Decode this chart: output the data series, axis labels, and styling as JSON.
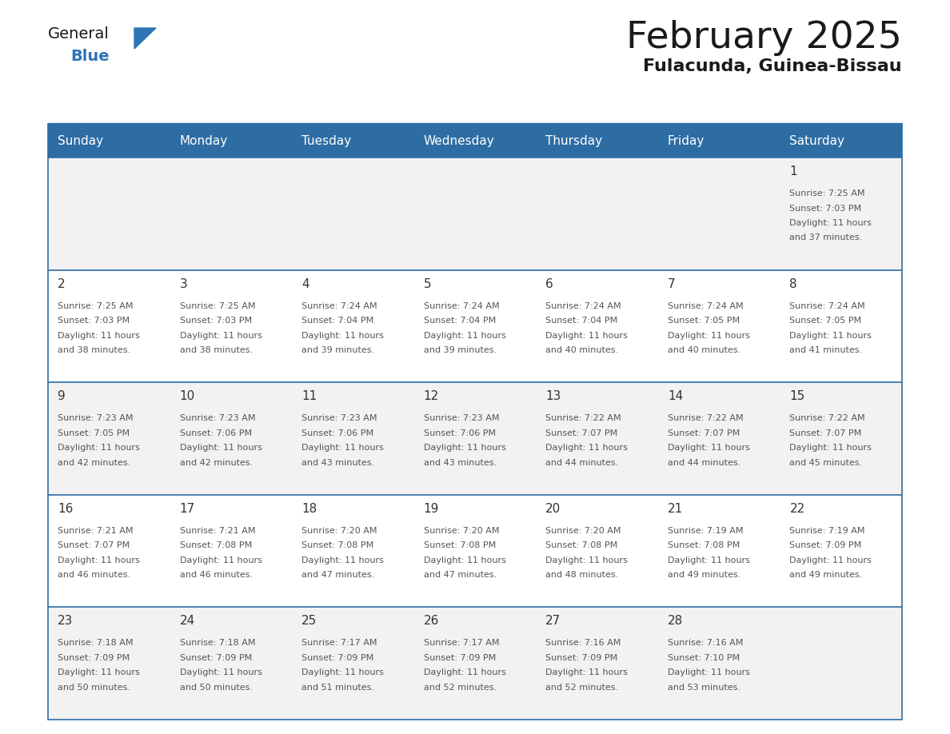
{
  "title": "February 2025",
  "subtitle": "Fulacunda, Guinea-Bissau",
  "header_color": "#2E6DA4",
  "header_text_color": "#FFFFFF",
  "cell_bg_even": "#F2F2F2",
  "cell_bg_odd": "#FFFFFF",
  "border_color": "#2E6DA4",
  "day_names": [
    "Sunday",
    "Monday",
    "Tuesday",
    "Wednesday",
    "Thursday",
    "Friday",
    "Saturday"
  ],
  "text_color": "#555555",
  "day_num_color": "#333333",
  "logo_general_color": "#1a1a1a",
  "logo_blue_color": "#2E75B6",
  "days": [
    {
      "day": 1,
      "col": 6,
      "row": 0,
      "sunrise": "7:25 AM",
      "sunset": "7:03 PM",
      "daylight_hrs": 11,
      "daylight_min": 37
    },
    {
      "day": 2,
      "col": 0,
      "row": 1,
      "sunrise": "7:25 AM",
      "sunset": "7:03 PM",
      "daylight_hrs": 11,
      "daylight_min": 38
    },
    {
      "day": 3,
      "col": 1,
      "row": 1,
      "sunrise": "7:25 AM",
      "sunset": "7:03 PM",
      "daylight_hrs": 11,
      "daylight_min": 38
    },
    {
      "day": 4,
      "col": 2,
      "row": 1,
      "sunrise": "7:24 AM",
      "sunset": "7:04 PM",
      "daylight_hrs": 11,
      "daylight_min": 39
    },
    {
      "day": 5,
      "col": 3,
      "row": 1,
      "sunrise": "7:24 AM",
      "sunset": "7:04 PM",
      "daylight_hrs": 11,
      "daylight_min": 39
    },
    {
      "day": 6,
      "col": 4,
      "row": 1,
      "sunrise": "7:24 AM",
      "sunset": "7:04 PM",
      "daylight_hrs": 11,
      "daylight_min": 40
    },
    {
      "day": 7,
      "col": 5,
      "row": 1,
      "sunrise": "7:24 AM",
      "sunset": "7:05 PM",
      "daylight_hrs": 11,
      "daylight_min": 40
    },
    {
      "day": 8,
      "col": 6,
      "row": 1,
      "sunrise": "7:24 AM",
      "sunset": "7:05 PM",
      "daylight_hrs": 11,
      "daylight_min": 41
    },
    {
      "day": 9,
      "col": 0,
      "row": 2,
      "sunrise": "7:23 AM",
      "sunset": "7:05 PM",
      "daylight_hrs": 11,
      "daylight_min": 42
    },
    {
      "day": 10,
      "col": 1,
      "row": 2,
      "sunrise": "7:23 AM",
      "sunset": "7:06 PM",
      "daylight_hrs": 11,
      "daylight_min": 42
    },
    {
      "day": 11,
      "col": 2,
      "row": 2,
      "sunrise": "7:23 AM",
      "sunset": "7:06 PM",
      "daylight_hrs": 11,
      "daylight_min": 43
    },
    {
      "day": 12,
      "col": 3,
      "row": 2,
      "sunrise": "7:23 AM",
      "sunset": "7:06 PM",
      "daylight_hrs": 11,
      "daylight_min": 43
    },
    {
      "day": 13,
      "col": 4,
      "row": 2,
      "sunrise": "7:22 AM",
      "sunset": "7:07 PM",
      "daylight_hrs": 11,
      "daylight_min": 44
    },
    {
      "day": 14,
      "col": 5,
      "row": 2,
      "sunrise": "7:22 AM",
      "sunset": "7:07 PM",
      "daylight_hrs": 11,
      "daylight_min": 44
    },
    {
      "day": 15,
      "col": 6,
      "row": 2,
      "sunrise": "7:22 AM",
      "sunset": "7:07 PM",
      "daylight_hrs": 11,
      "daylight_min": 45
    },
    {
      "day": 16,
      "col": 0,
      "row": 3,
      "sunrise": "7:21 AM",
      "sunset": "7:07 PM",
      "daylight_hrs": 11,
      "daylight_min": 46
    },
    {
      "day": 17,
      "col": 1,
      "row": 3,
      "sunrise": "7:21 AM",
      "sunset": "7:08 PM",
      "daylight_hrs": 11,
      "daylight_min": 46
    },
    {
      "day": 18,
      "col": 2,
      "row": 3,
      "sunrise": "7:20 AM",
      "sunset": "7:08 PM",
      "daylight_hrs": 11,
      "daylight_min": 47
    },
    {
      "day": 19,
      "col": 3,
      "row": 3,
      "sunrise": "7:20 AM",
      "sunset": "7:08 PM",
      "daylight_hrs": 11,
      "daylight_min": 47
    },
    {
      "day": 20,
      "col": 4,
      "row": 3,
      "sunrise": "7:20 AM",
      "sunset": "7:08 PM",
      "daylight_hrs": 11,
      "daylight_min": 48
    },
    {
      "day": 21,
      "col": 5,
      "row": 3,
      "sunrise": "7:19 AM",
      "sunset": "7:08 PM",
      "daylight_hrs": 11,
      "daylight_min": 49
    },
    {
      "day": 22,
      "col": 6,
      "row": 3,
      "sunrise": "7:19 AM",
      "sunset": "7:09 PM",
      "daylight_hrs": 11,
      "daylight_min": 49
    },
    {
      "day": 23,
      "col": 0,
      "row": 4,
      "sunrise": "7:18 AM",
      "sunset": "7:09 PM",
      "daylight_hrs": 11,
      "daylight_min": 50
    },
    {
      "day": 24,
      "col": 1,
      "row": 4,
      "sunrise": "7:18 AM",
      "sunset": "7:09 PM",
      "daylight_hrs": 11,
      "daylight_min": 50
    },
    {
      "day": 25,
      "col": 2,
      "row": 4,
      "sunrise": "7:17 AM",
      "sunset": "7:09 PM",
      "daylight_hrs": 11,
      "daylight_min": 51
    },
    {
      "day": 26,
      "col": 3,
      "row": 4,
      "sunrise": "7:17 AM",
      "sunset": "7:09 PM",
      "daylight_hrs": 11,
      "daylight_min": 52
    },
    {
      "day": 27,
      "col": 4,
      "row": 4,
      "sunrise": "7:16 AM",
      "sunset": "7:09 PM",
      "daylight_hrs": 11,
      "daylight_min": 52
    },
    {
      "day": 28,
      "col": 5,
      "row": 4,
      "sunrise": "7:16 AM",
      "sunset": "7:10 PM",
      "daylight_hrs": 11,
      "daylight_min": 53
    }
  ],
  "num_rows": 5,
  "num_cols": 7
}
